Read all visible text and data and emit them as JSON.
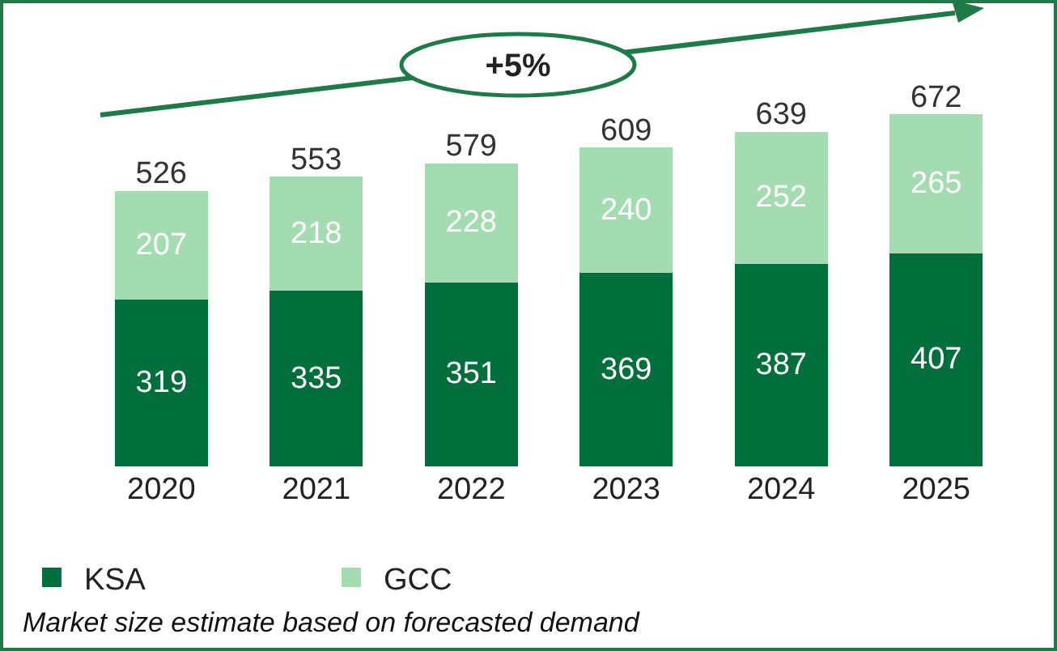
{
  "chart_data": {
    "type": "bar",
    "stacked": true,
    "categories": [
      "2020",
      "2021",
      "2022",
      "2023",
      "2024",
      "2025"
    ],
    "series": [
      {
        "name": "KSA",
        "color": "#006f3c",
        "values": [
          319,
          335,
          351,
          369,
          387,
          407
        ]
      },
      {
        "name": "GCC",
        "color": "#a3dcb1",
        "values": [
          207,
          218,
          228,
          240,
          252,
          265
        ]
      }
    ],
    "totals": [
      "526",
      "553",
      "579",
      "609",
      "639",
      "672"
    ],
    "data_labels": true,
    "legend": "bottom left",
    "grid": false,
    "annotations": [
      "+5%",
      "Market size estimate based on forecasted demand"
    ]
  }
}
